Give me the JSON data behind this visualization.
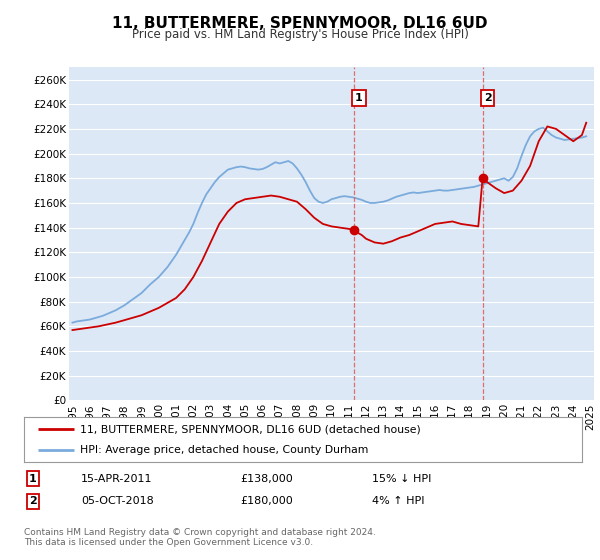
{
  "title": "11, BUTTERMERE, SPENNYMOOR, DL16 6UD",
  "subtitle": "Price paid vs. HM Land Registry's House Price Index (HPI)",
  "ylim": [
    0,
    270000
  ],
  "yticks": [
    0,
    20000,
    40000,
    60000,
    80000,
    100000,
    120000,
    140000,
    160000,
    180000,
    200000,
    220000,
    240000,
    260000
  ],
  "ytick_labels": [
    "£0",
    "£20K",
    "£40K",
    "£60K",
    "£80K",
    "£100K",
    "£120K",
    "£140K",
    "£160K",
    "£180K",
    "£200K",
    "£220K",
    "£240K",
    "£260K"
  ],
  "background_color": "#ffffff",
  "plot_bg_color": "#dce8f5",
  "grid_color": "#ffffff",
  "hpi_color": "#7aabdc",
  "price_color": "#cc0000",
  "marker1_x": 2011.29,
  "marker1_y": 138000,
  "marker2_x": 2018.75,
  "marker2_y": 180000,
  "vline_color": "#e06060",
  "legend_label1": "11, BUTTERMERE, SPENNYMOOR, DL16 6UD (detached house)",
  "legend_label2": "HPI: Average price, detached house, County Durham",
  "table_row1": [
    "1",
    "15-APR-2011",
    "£138,000",
    "15% ↓ HPI"
  ],
  "table_row2": [
    "2",
    "05-OCT-2018",
    "£180,000",
    "4% ↑ HPI"
  ],
  "footnote": "Contains HM Land Registry data © Crown copyright and database right 2024.\nThis data is licensed under the Open Government Licence v3.0.",
  "hpi_data_x": [
    1995.0,
    1995.25,
    1995.5,
    1995.75,
    1996.0,
    1996.25,
    1996.5,
    1996.75,
    1997.0,
    1997.25,
    1997.5,
    1997.75,
    1998.0,
    1998.25,
    1998.5,
    1998.75,
    1999.0,
    1999.25,
    1999.5,
    1999.75,
    2000.0,
    2000.25,
    2000.5,
    2000.75,
    2001.0,
    2001.25,
    2001.5,
    2001.75,
    2002.0,
    2002.25,
    2002.5,
    2002.75,
    2003.0,
    2003.25,
    2003.5,
    2003.75,
    2004.0,
    2004.25,
    2004.5,
    2004.75,
    2005.0,
    2005.25,
    2005.5,
    2005.75,
    2006.0,
    2006.25,
    2006.5,
    2006.75,
    2007.0,
    2007.25,
    2007.5,
    2007.75,
    2008.0,
    2008.25,
    2008.5,
    2008.75,
    2009.0,
    2009.25,
    2009.5,
    2009.75,
    2010.0,
    2010.25,
    2010.5,
    2010.75,
    2011.0,
    2011.25,
    2011.5,
    2011.75,
    2012.0,
    2012.25,
    2012.5,
    2012.75,
    2013.0,
    2013.25,
    2013.5,
    2013.75,
    2014.0,
    2014.25,
    2014.5,
    2014.75,
    2015.0,
    2015.25,
    2015.5,
    2015.75,
    2016.0,
    2016.25,
    2016.5,
    2016.75,
    2017.0,
    2017.25,
    2017.5,
    2017.75,
    2018.0,
    2018.25,
    2018.5,
    2018.75,
    2019.0,
    2019.25,
    2019.5,
    2019.75,
    2020.0,
    2020.25,
    2020.5,
    2020.75,
    2021.0,
    2021.25,
    2021.5,
    2021.75,
    2022.0,
    2022.25,
    2022.5,
    2022.75,
    2023.0,
    2023.25,
    2023.5,
    2023.75,
    2024.0,
    2024.25,
    2024.5,
    2024.75
  ],
  "hpi_data_y": [
    63000,
    64000,
    64500,
    65000,
    65500,
    66500,
    67500,
    68500,
    70000,
    71500,
    73000,
    75000,
    77000,
    79500,
    82000,
    84500,
    87000,
    90500,
    94000,
    97000,
    100000,
    104000,
    108000,
    113000,
    118000,
    124000,
    130000,
    136000,
    143000,
    152000,
    160000,
    167000,
    172000,
    177000,
    181000,
    184000,
    187000,
    188000,
    189000,
    189500,
    189000,
    188000,
    187500,
    187000,
    187500,
    189000,
    191000,
    193000,
    192000,
    193000,
    194000,
    192000,
    188000,
    183000,
    177000,
    170000,
    164000,
    161000,
    160000,
    161000,
    163000,
    164000,
    165000,
    165500,
    165000,
    164500,
    163500,
    162500,
    161000,
    160000,
    160000,
    160500,
    161000,
    162000,
    163500,
    165000,
    166000,
    167000,
    168000,
    168500,
    168000,
    168500,
    169000,
    169500,
    170000,
    170500,
    170000,
    170000,
    170500,
    171000,
    171500,
    172000,
    172500,
    173000,
    174000,
    175000,
    176000,
    177000,
    178000,
    179000,
    180000,
    178000,
    181000,
    188000,
    198000,
    207000,
    214000,
    218000,
    220000,
    221000,
    218000,
    215000,
    213000,
    212000,
    211000,
    211500,
    212000,
    212500,
    213000,
    214000
  ],
  "price_data_x": [
    1995.0,
    1995.5,
    1996.0,
    1996.5,
    1997.0,
    1997.5,
    1998.0,
    1998.5,
    1999.0,
    1999.5,
    2000.0,
    2000.5,
    2001.0,
    2001.5,
    2002.0,
    2002.5,
    2003.0,
    2003.5,
    2004.0,
    2004.5,
    2005.0,
    2005.5,
    2006.0,
    2006.5,
    2007.0,
    2007.5,
    2008.0,
    2008.5,
    2009.0,
    2009.5,
    2010.0,
    2010.5,
    2011.0,
    2011.29,
    2011.5,
    2011.75,
    2012.0,
    2012.5,
    2013.0,
    2013.5,
    2014.0,
    2014.5,
    2015.0,
    2015.5,
    2016.0,
    2016.5,
    2017.0,
    2017.5,
    2018.0,
    2018.5,
    2018.75,
    2019.0,
    2019.5,
    2020.0,
    2020.5,
    2021.0,
    2021.5,
    2022.0,
    2022.5,
    2023.0,
    2023.5,
    2024.0,
    2024.5,
    2024.75
  ],
  "price_data_y": [
    57000,
    58000,
    59000,
    60000,
    61500,
    63000,
    65000,
    67000,
    69000,
    72000,
    75000,
    79000,
    83000,
    90000,
    100000,
    113000,
    128000,
    143000,
    153000,
    160000,
    163000,
    164000,
    165000,
    166000,
    165000,
    163000,
    161000,
    155000,
    148000,
    143000,
    141000,
    140000,
    139000,
    138000,
    136000,
    134000,
    131000,
    128000,
    127000,
    129000,
    132000,
    134000,
    137000,
    140000,
    143000,
    144000,
    145000,
    143000,
    142000,
    141000,
    180000,
    177000,
    172000,
    168000,
    170000,
    178000,
    190000,
    210000,
    222000,
    220000,
    215000,
    210000,
    215000,
    225000
  ],
  "xlim": [
    1994.8,
    2025.2
  ],
  "xticks": [
    1995,
    1996,
    1997,
    1998,
    1999,
    2000,
    2001,
    2002,
    2003,
    2004,
    2005,
    2006,
    2007,
    2008,
    2009,
    2010,
    2011,
    2012,
    2013,
    2014,
    2015,
    2016,
    2017,
    2018,
    2019,
    2020,
    2021,
    2022,
    2023,
    2024,
    2025
  ]
}
